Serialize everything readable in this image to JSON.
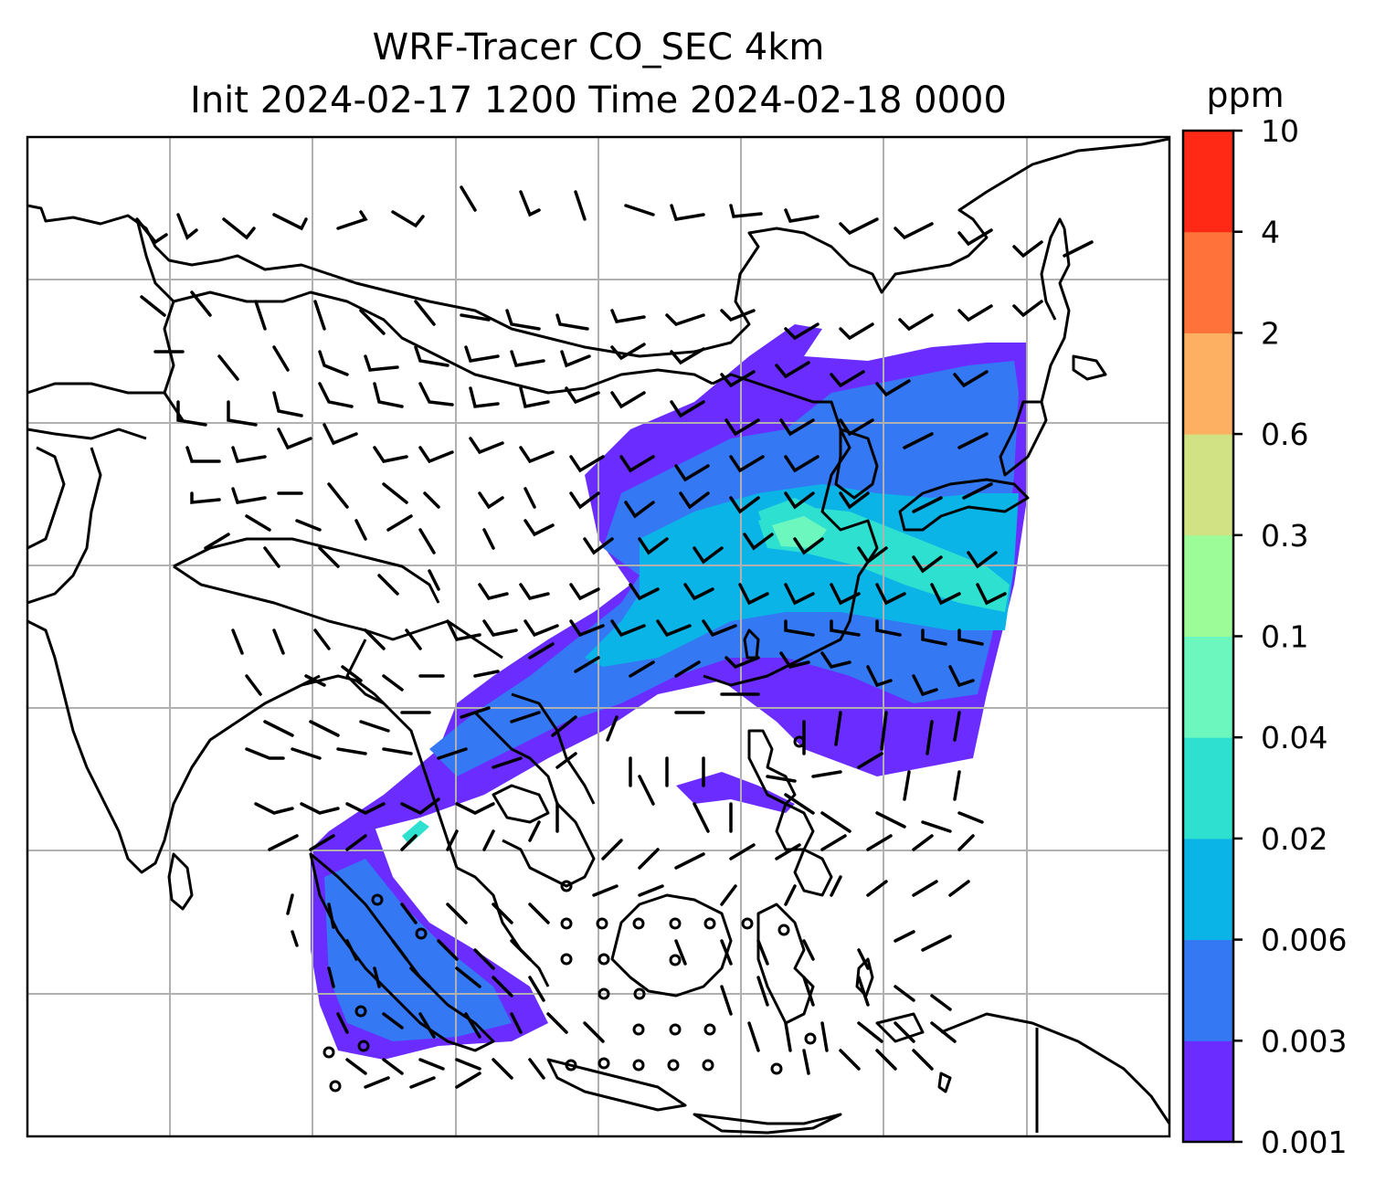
{
  "figure": {
    "title_line1": "WRF-Tracer CO_SEC 4km",
    "title_line2": "Init 2024-02-17 1200 Time 2024-02-18 0000"
  },
  "colorbar": {
    "units": "ppm",
    "levels": [
      "0.001",
      "0.003",
      "0.006",
      "0.02",
      "0.04",
      "0.1",
      "0.3",
      "0.6",
      "2",
      "4",
      "10"
    ],
    "colors": [
      "#6a2cff",
      "#3478f3",
      "#0bb4e6",
      "#2ee0d0",
      "#6cf7be",
      "#9cfc97",
      "#d0e283",
      "#fdb061",
      "#ff7239",
      "#ff2915"
    ]
  },
  "map": {
    "gridlines": true,
    "gridline_color": "#b0b0b0",
    "coastline_color": "#000000",
    "wind_barb_color": "#000000"
  }
}
